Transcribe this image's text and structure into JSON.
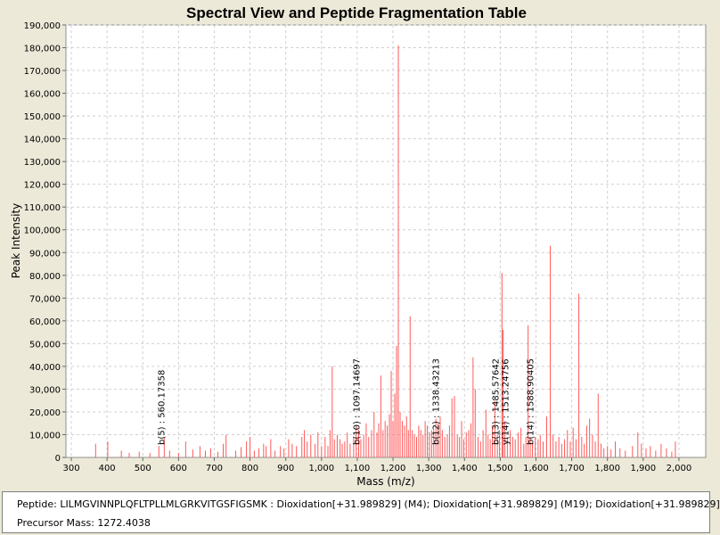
{
  "chart_data": {
    "type": "bar",
    "title": "Spectral View and Peptide Fragmentation Table",
    "xlabel": "Mass (m/z)",
    "ylabel": "Peak Intensity",
    "xlim": [
      285,
      2075
    ],
    "ylim": [
      0,
      190000
    ],
    "x_ticks": [
      300,
      400,
      500,
      600,
      700,
      800,
      900,
      1000,
      1100,
      1200,
      1300,
      1400,
      1500,
      1600,
      1700,
      1800,
      1900,
      2000
    ],
    "x_tick_labels": [
      "300",
      "400",
      "500",
      "600",
      "700",
      "800",
      "900",
      "1,000",
      "1,100",
      "1,200",
      "1,300",
      "1,400",
      "1,500",
      "1,600",
      "1,700",
      "1,800",
      "1,900",
      "2,000"
    ],
    "y_ticks": [
      0,
      10000,
      20000,
      30000,
      40000,
      50000,
      60000,
      70000,
      80000,
      90000,
      100000,
      110000,
      120000,
      130000,
      140000,
      150000,
      160000,
      170000,
      180000,
      190000
    ],
    "y_tick_labels": [
      "0",
      "10,000",
      "20,000",
      "30,000",
      "40,000",
      "50,000",
      "60,000",
      "70,000",
      "80,000",
      "90,000",
      "100,000",
      "110,000",
      "120,000",
      "130,000",
      "140,000",
      "150,000",
      "160,000",
      "170,000",
      "180,000",
      "190,000"
    ],
    "grid": true,
    "series": [
      {
        "name": "spectrum",
        "color": "#FF5A5A",
        "points": [
          [
            368,
            6000
          ],
          [
            402,
            7000
          ],
          [
            440,
            3000
          ],
          [
            462,
            2000
          ],
          [
            490,
            2500
          ],
          [
            520,
            2000
          ],
          [
            545,
            5000
          ],
          [
            560,
            9000
          ],
          [
            575,
            3000
          ],
          [
            600,
            2000
          ],
          [
            620,
            7000
          ],
          [
            640,
            3500
          ],
          [
            660,
            5000
          ],
          [
            675,
            3000
          ],
          [
            690,
            4000
          ],
          [
            710,
            2500
          ],
          [
            725,
            6000
          ],
          [
            733,
            10000
          ],
          [
            760,
            3000
          ],
          [
            775,
            4500
          ],
          [
            790,
            7000
          ],
          [
            800,
            9000
          ],
          [
            812,
            3000
          ],
          [
            825,
            4000
          ],
          [
            838,
            6000
          ],
          [
            845,
            5000
          ],
          [
            858,
            8000
          ],
          [
            870,
            3000
          ],
          [
            885,
            5000
          ],
          [
            895,
            4000
          ],
          [
            908,
            8000
          ],
          [
            918,
            6000
          ],
          [
            930,
            5000
          ],
          [
            945,
            9000
          ],
          [
            952,
            12000
          ],
          [
            960,
            7000
          ],
          [
            970,
            10000
          ],
          [
            982,
            6000
          ],
          [
            990,
            11000
          ],
          [
            1000,
            5000
          ],
          [
            1010,
            9000
          ],
          [
            1018,
            5000
          ],
          [
            1024,
            12000
          ],
          [
            1030,
            40000
          ],
          [
            1036,
            8000
          ],
          [
            1044,
            10000
          ],
          [
            1052,
            8000
          ],
          [
            1058,
            6000
          ],
          [
            1065,
            7000
          ],
          [
            1072,
            11000
          ],
          [
            1080,
            6000
          ],
          [
            1090,
            9000
          ],
          [
            1097,
            14000
          ],
          [
            1104,
            12000
          ],
          [
            1110,
            8000
          ],
          [
            1118,
            10000
          ],
          [
            1125,
            15000
          ],
          [
            1132,
            9000
          ],
          [
            1140,
            12000
          ],
          [
            1147,
            20000
          ],
          [
            1155,
            11000
          ],
          [
            1160,
            15000
          ],
          [
            1166,
            36000
          ],
          [
            1172,
            12000
          ],
          [
            1178,
            16000
          ],
          [
            1184,
            14000
          ],
          [
            1190,
            19000
          ],
          [
            1195,
            38000
          ],
          [
            1200,
            16000
          ],
          [
            1205,
            28000
          ],
          [
            1210,
            49000
          ],
          [
            1215,
            181000
          ],
          [
            1220,
            20000
          ],
          [
            1226,
            16000
          ],
          [
            1232,
            14000
          ],
          [
            1238,
            18000
          ],
          [
            1243,
            12000
          ],
          [
            1248,
            62000
          ],
          [
            1254,
            12000
          ],
          [
            1260,
            10000
          ],
          [
            1266,
            9000
          ],
          [
            1272,
            14000
          ],
          [
            1278,
            12000
          ],
          [
            1284,
            10000
          ],
          [
            1290,
            16000
          ],
          [
            1296,
            14000
          ],
          [
            1302,
            11000
          ],
          [
            1308,
            12000
          ],
          [
            1314,
            12000
          ],
          [
            1320,
            17000
          ],
          [
            1326,
            15000
          ],
          [
            1332,
            18000
          ],
          [
            1338,
            12000
          ],
          [
            1345,
            9000
          ],
          [
            1352,
            10000
          ],
          [
            1358,
            14000
          ],
          [
            1365,
            26000
          ],
          [
            1372,
            27000
          ],
          [
            1380,
            10000
          ],
          [
            1386,
            9000
          ],
          [
            1392,
            16000
          ],
          [
            1398,
            8000
          ],
          [
            1405,
            11000
          ],
          [
            1412,
            12000
          ],
          [
            1418,
            15000
          ],
          [
            1424,
            44000
          ],
          [
            1430,
            30000
          ],
          [
            1438,
            9000
          ],
          [
            1445,
            7000
          ],
          [
            1452,
            12000
          ],
          [
            1460,
            21000
          ],
          [
            1466,
            10000
          ],
          [
            1472,
            8000
          ],
          [
            1478,
            14000
          ],
          [
            1485,
            25000
          ],
          [
            1492,
            10000
          ],
          [
            1498,
            12000
          ],
          [
            1505,
            81000
          ],
          [
            1508,
            56000
          ],
          [
            1513,
            16000
          ],
          [
            1520,
            9000
          ],
          [
            1528,
            12000
          ],
          [
            1535,
            9000
          ],
          [
            1542,
            8000
          ],
          [
            1550,
            11000
          ],
          [
            1558,
            13000
          ],
          [
            1566,
            6000
          ],
          [
            1572,
            9000
          ],
          [
            1578,
            58000
          ],
          [
            1584,
            9000
          ],
          [
            1590,
            6000
          ],
          [
            1598,
            9000
          ],
          [
            1606,
            8000
          ],
          [
            1612,
            10000
          ],
          [
            1620,
            7000
          ],
          [
            1630,
            18000
          ],
          [
            1640,
            93000
          ],
          [
            1648,
            10000
          ],
          [
            1656,
            7000
          ],
          [
            1664,
            9000
          ],
          [
            1672,
            6000
          ],
          [
            1680,
            8000
          ],
          [
            1688,
            12000
          ],
          [
            1696,
            7000
          ],
          [
            1704,
            13000
          ],
          [
            1712,
            8000
          ],
          [
            1720,
            72000
          ],
          [
            1728,
            9000
          ],
          [
            1735,
            6000
          ],
          [
            1742,
            14000
          ],
          [
            1750,
            17000
          ],
          [
            1758,
            10000
          ],
          [
            1766,
            7000
          ],
          [
            1774,
            28000
          ],
          [
            1782,
            6000
          ],
          [
            1790,
            4000
          ],
          [
            1800,
            5000
          ],
          [
            1810,
            3500
          ],
          [
            1822,
            7000
          ],
          [
            1835,
            4000
          ],
          [
            1850,
            3000
          ],
          [
            1870,
            5000
          ],
          [
            1885,
            11000
          ],
          [
            1895,
            6000
          ],
          [
            1908,
            4000
          ],
          [
            1920,
            5000
          ],
          [
            1935,
            3000
          ],
          [
            1950,
            6000
          ],
          [
            1965,
            4000
          ],
          [
            1980,
            2500
          ],
          [
            1990,
            7000
          ]
        ]
      }
    ],
    "annotations": [
      {
        "x": 550,
        "label": "b(5) : 560.17358"
      },
      {
        "x": 1097,
        "label": "b(10) : 1097.14697"
      },
      {
        "x": 1318,
        "label": "b(12) : 1338.43213"
      },
      {
        "x": 1485,
        "label": "b(13) : 1485.57642"
      },
      {
        "x": 1513,
        "label": "y(14) : 1513.24756"
      },
      {
        "x": 1583,
        "label": "b(14) : 1588.90405"
      }
    ],
    "colors": {
      "background": "#ECE9D8",
      "plot_background": "#FFFFFF",
      "grid": "#D0D0D0",
      "text": "#000000"
    }
  },
  "info": {
    "peptide_text": "Peptide: LILMGVINNPLQFLTPLLMLGRKVITGSFIGSMK : Dioxidation[+31.989829] (M4); Dioxidation[+31.989829] (M19); Dioxidation[+31.989829]",
    "precursor_text": "Precursor Mass: 1272.4038"
  }
}
